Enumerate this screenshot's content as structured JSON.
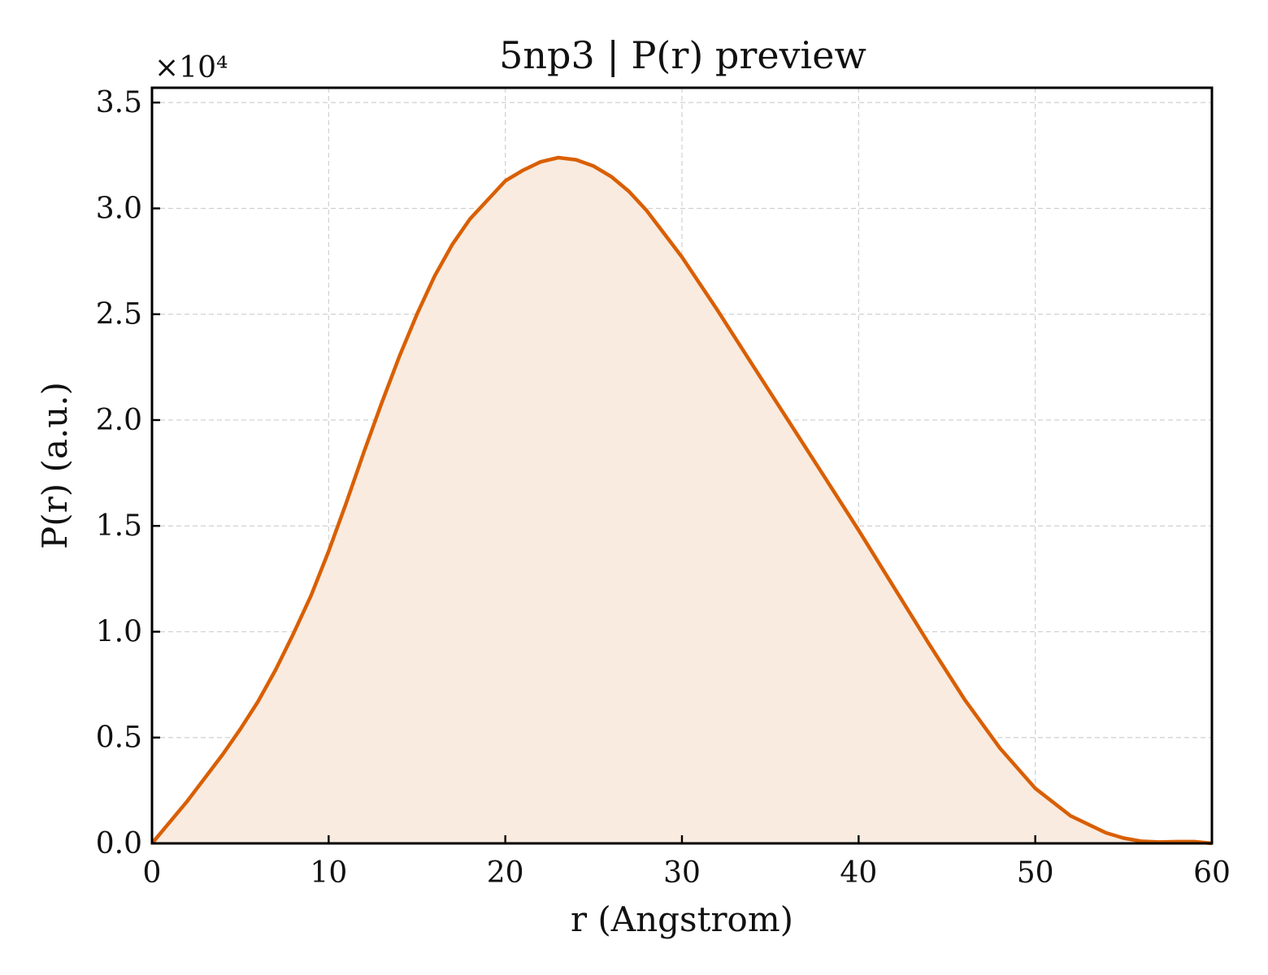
{
  "chart_data": {
    "type": "area",
    "title": "5np3 | P(r) preview",
    "xlabel": "r (Angstrom)",
    "ylabel": "P(r) (a.u.)",
    "y_multiplier": "×10⁴",
    "xlim": [
      0,
      60
    ],
    "ylim": [
      0,
      35700
    ],
    "x_ticks": [
      0,
      10,
      20,
      30,
      40,
      50,
      60
    ],
    "x_tick_labels": [
      "0",
      "10",
      "20",
      "30",
      "40",
      "50",
      "60"
    ],
    "y_ticks": [
      0,
      5000,
      10000,
      15000,
      20000,
      25000,
      30000,
      35000
    ],
    "y_tick_labels": [
      "0.0",
      "0.5",
      "1.0",
      "1.5",
      "2.0",
      "2.5",
      "3.0",
      "3.5"
    ],
    "grid": true,
    "colors": {
      "line": "#d95f02",
      "fill": "#f9ebe0"
    },
    "series": [
      {
        "x": [
          0,
          2,
          4,
          5,
          6,
          7,
          8,
          9,
          10,
          11,
          12,
          13,
          14,
          15,
          16,
          17,
          18,
          19,
          20,
          21,
          22,
          23,
          24,
          25,
          26,
          27,
          28,
          29,
          30,
          32,
          34,
          36,
          38,
          40,
          42,
          44,
          46,
          48,
          50,
          52,
          54,
          55,
          56,
          57,
          58,
          59,
          60
        ],
        "y": [
          0,
          2000,
          4200,
          5400,
          6700,
          8200,
          9900,
          11700,
          13800,
          16100,
          18500,
          20800,
          23000,
          25000,
          26800,
          28300,
          29500,
          30400,
          31300,
          31800,
          32200,
          32400,
          32300,
          32000,
          31500,
          30800,
          29900,
          28800,
          27700,
          25200,
          22600,
          20000,
          17400,
          14800,
          12100,
          9400,
          6800,
          4500,
          2600,
          1300,
          500,
          250,
          100,
          60,
          80,
          80,
          0
        ]
      }
    ]
  }
}
